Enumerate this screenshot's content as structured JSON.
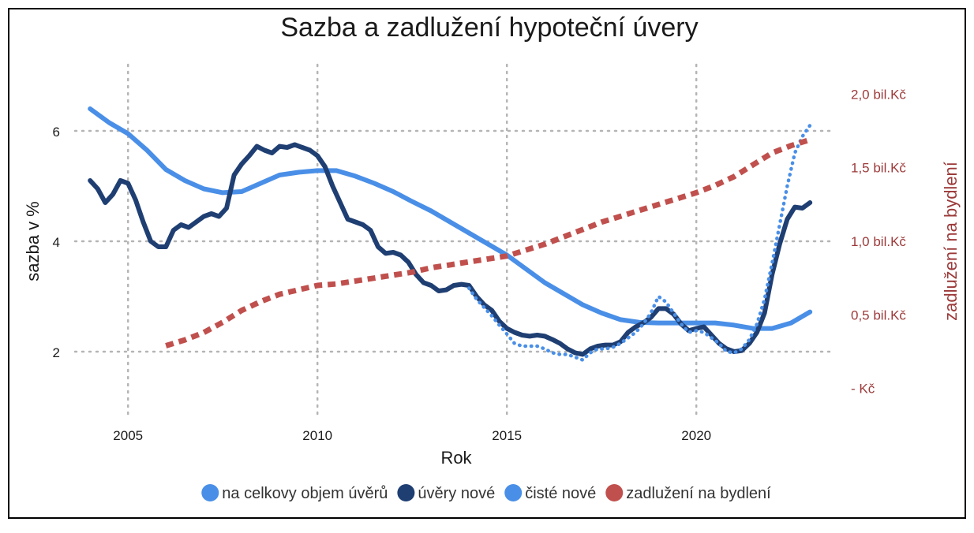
{
  "chart_data": {
    "type": "line",
    "title": "Sazba a zadlužení hypoteční úvery",
    "xlabel": "Rok",
    "ylabel": "sazba v %",
    "y2label": "zadlužení na bydlení",
    "xlim": [
      2003.6,
      2023.6
    ],
    "ylim": [
      0.8,
      7.2
    ],
    "y2lim": [
      -0.2,
      2.2
    ],
    "x_ticks": [
      2005,
      2010,
      2015,
      2020
    ],
    "y_ticks": [
      2,
      4,
      6
    ],
    "y2_ticks": [
      {
        "value": 0,
        "label": "- Kč"
      },
      {
        "value": 0.5,
        "label": "0,5 bil.Kč"
      },
      {
        "value": 1.0,
        "label": "1,0 bil.Kč"
      },
      {
        "value": 1.5,
        "label": "1,5 bil.Kč"
      },
      {
        "value": 2.0,
        "label": "2,0 bil.Kč"
      }
    ],
    "grid": true,
    "legend_position": "bottom",
    "series": [
      {
        "name": "na celkovy objem úvěrů",
        "axis": "left",
        "color": "#4a8fe7",
        "style": "solid",
        "x": [
          2004.0,
          2004.5,
          2005.0,
          2005.5,
          2006.0,
          2006.5,
          2007.0,
          2007.5,
          2008.0,
          2008.5,
          2009.0,
          2009.5,
          2010.0,
          2010.5,
          2011.0,
          2011.5,
          2012.0,
          2012.5,
          2013.0,
          2013.5,
          2014.0,
          2014.5,
          2015.0,
          2015.5,
          2016.0,
          2016.5,
          2017.0,
          2017.5,
          2018.0,
          2018.5,
          2019.0,
          2019.5,
          2020.0,
          2020.5,
          2021.0,
          2021.5,
          2022.0,
          2022.5,
          2023.0
        ],
        "values": [
          6.4,
          6.15,
          5.95,
          5.65,
          5.3,
          5.1,
          4.95,
          4.88,
          4.9,
          5.05,
          5.2,
          5.25,
          5.28,
          5.28,
          5.18,
          5.05,
          4.9,
          4.72,
          4.55,
          4.35,
          4.15,
          3.95,
          3.75,
          3.5,
          3.25,
          3.05,
          2.85,
          2.7,
          2.58,
          2.53,
          2.52,
          2.52,
          2.52,
          2.52,
          2.48,
          2.42,
          2.42,
          2.52,
          2.72
        ]
      },
      {
        "name": "úvěry nové",
        "axis": "left",
        "color": "#1f3f73",
        "style": "solid",
        "x": [
          2004.0,
          2004.2,
          2004.4,
          2004.6,
          2004.8,
          2005.0,
          2005.2,
          2005.4,
          2005.6,
          2005.8,
          2006.0,
          2006.2,
          2006.4,
          2006.6,
          2006.8,
          2007.0,
          2007.2,
          2007.4,
          2007.6,
          2007.8,
          2008.0,
          2008.2,
          2008.4,
          2008.6,
          2008.8,
          2009.0,
          2009.2,
          2009.4,
          2009.6,
          2009.8,
          2010.0,
          2010.2,
          2010.4,
          2010.6,
          2010.8,
          2011.0,
          2011.2,
          2011.4,
          2011.6,
          2011.8,
          2012.0,
          2012.2,
          2012.4,
          2012.6,
          2012.8,
          2013.0,
          2013.2,
          2013.4,
          2013.6,
          2013.8,
          2014.0,
          2014.2,
          2014.4,
          2014.6,
          2014.8,
          2015.0,
          2015.2,
          2015.4,
          2015.6,
          2015.8,
          2016.0,
          2016.2,
          2016.4,
          2016.6,
          2016.8,
          2017.0,
          2017.2,
          2017.4,
          2017.6,
          2017.8,
          2018.0,
          2018.2,
          2018.4,
          2018.6,
          2018.8,
          2019.0,
          2019.2,
          2019.4,
          2019.6,
          2019.8,
          2020.0,
          2020.2,
          2020.4,
          2020.6,
          2020.8,
          2021.0,
          2021.2,
          2021.4,
          2021.6,
          2021.8,
          2022.0,
          2022.2,
          2022.4,
          2022.6,
          2022.8,
          2023.0
        ],
        "values": [
          5.1,
          4.95,
          4.7,
          4.85,
          5.1,
          5.05,
          4.75,
          4.35,
          4.0,
          3.9,
          3.9,
          4.2,
          4.3,
          4.25,
          4.35,
          4.45,
          4.5,
          4.45,
          4.6,
          5.2,
          5.4,
          5.55,
          5.72,
          5.65,
          5.6,
          5.72,
          5.7,
          5.75,
          5.7,
          5.65,
          5.55,
          5.35,
          5.0,
          4.7,
          4.4,
          4.35,
          4.3,
          4.2,
          3.9,
          3.78,
          3.8,
          3.75,
          3.62,
          3.4,
          3.25,
          3.2,
          3.1,
          3.12,
          3.2,
          3.22,
          3.2,
          3.0,
          2.85,
          2.75,
          2.55,
          2.42,
          2.35,
          2.3,
          2.28,
          2.3,
          2.28,
          2.22,
          2.15,
          2.05,
          1.98,
          1.95,
          2.05,
          2.1,
          2.12,
          2.12,
          2.18,
          2.35,
          2.45,
          2.52,
          2.62,
          2.78,
          2.78,
          2.68,
          2.5,
          2.38,
          2.42,
          2.45,
          2.3,
          2.15,
          2.05,
          2.0,
          2.02,
          2.15,
          2.35,
          2.7,
          3.4,
          3.95,
          4.4,
          4.62,
          4.6,
          4.7
        ]
      },
      {
        "name": "čisté nové",
        "axis": "left",
        "color": "#4a8fe7",
        "style": "dotted",
        "x": [
          2014.0,
          2014.2,
          2014.4,
          2014.6,
          2014.8,
          2015.0,
          2015.2,
          2015.4,
          2015.6,
          2015.8,
          2016.0,
          2016.2,
          2016.4,
          2016.6,
          2016.8,
          2017.0,
          2017.2,
          2017.4,
          2017.6,
          2017.8,
          2018.0,
          2018.2,
          2018.4,
          2018.6,
          2018.8,
          2019.0,
          2019.2,
          2019.4,
          2019.6,
          2019.8,
          2020.0,
          2020.2,
          2020.4,
          2020.6,
          2020.8,
          2021.0,
          2021.2,
          2021.4,
          2021.6,
          2021.8,
          2022.0,
          2022.2,
          2022.4,
          2022.6,
          2022.8,
          2023.0
        ],
        "values": [
          3.15,
          2.95,
          2.8,
          2.65,
          2.48,
          2.32,
          2.15,
          2.1,
          2.1,
          2.1,
          2.05,
          1.98,
          1.95,
          1.95,
          1.9,
          1.85,
          1.98,
          2.05,
          2.05,
          2.08,
          2.15,
          2.25,
          2.35,
          2.5,
          2.7,
          3.0,
          2.9,
          2.7,
          2.5,
          2.35,
          2.38,
          2.35,
          2.25,
          2.15,
          2.0,
          1.98,
          2.05,
          2.22,
          2.5,
          2.95,
          3.6,
          4.3,
          5.0,
          5.6,
          5.9,
          6.1
        ]
      },
      {
        "name": "zadlužení na bydlení",
        "axis": "right",
        "color": "#c0504d",
        "style": "dashed",
        "x": [
          2006.0,
          2006.5,
          2007.0,
          2007.5,
          2008.0,
          2008.5,
          2009.0,
          2009.5,
          2010.0,
          2010.5,
          2011.0,
          2011.5,
          2012.0,
          2012.5,
          2013.0,
          2013.5,
          2014.0,
          2014.5,
          2015.0,
          2015.5,
          2016.0,
          2016.5,
          2017.0,
          2017.5,
          2018.0,
          2018.5,
          2019.0,
          2019.5,
          2020.0,
          2020.5,
          2021.0,
          2021.5,
          2022.0,
          2022.5,
          2023.0
        ],
        "values": [
          0.29,
          0.33,
          0.38,
          0.45,
          0.53,
          0.59,
          0.64,
          0.67,
          0.7,
          0.71,
          0.73,
          0.75,
          0.77,
          0.79,
          0.82,
          0.84,
          0.86,
          0.88,
          0.9,
          0.94,
          0.98,
          1.03,
          1.08,
          1.13,
          1.17,
          1.21,
          1.25,
          1.29,
          1.33,
          1.38,
          1.44,
          1.52,
          1.6,
          1.65,
          1.69
        ]
      }
    ]
  }
}
